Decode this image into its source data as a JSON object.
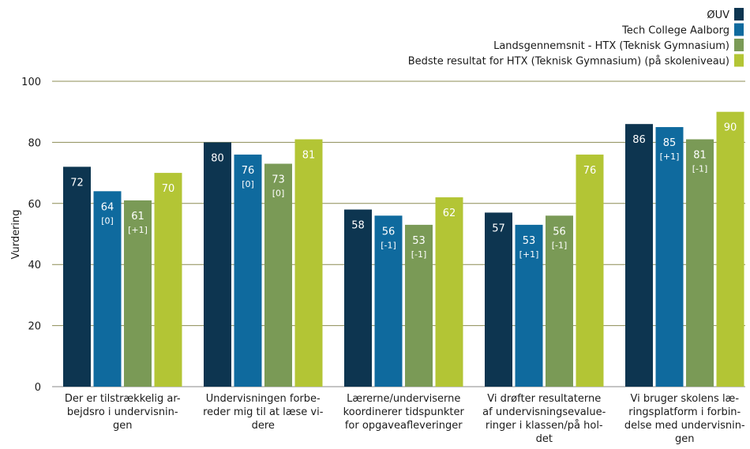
{
  "chart_data": {
    "type": "bar",
    "ylabel": "Vurdering",
    "ylim": [
      0,
      100
    ],
    "yticks": [
      0,
      20,
      40,
      60,
      80,
      100
    ],
    "grid": true,
    "legend_position": "top-right",
    "categories": [
      [
        "Der er tilstrækkelig ar-",
        "bejdsro i undervisnin-",
        "gen"
      ],
      [
        "Undervisningen forbe-",
        "reder mig til at læse vi-",
        "dere"
      ],
      [
        "Lærerne/underviserne",
        "koordinerer tidspunkter",
        "for opgaveafleveringer"
      ],
      [
        "Vi drøfter resultaterne",
        "af undervisningsevalue-",
        "ringer i klassen/på hol-",
        "det"
      ],
      [
        "Vi bruger skolens læ-",
        "ringsplatform  i forbin-",
        "delse med undervisnin-",
        "gen"
      ]
    ],
    "series": [
      {
        "name": "ØUV",
        "color": "#0d3550",
        "values": [
          72,
          80,
          58,
          57,
          86
        ],
        "diffs": [
          "",
          "",
          "",
          "",
          ""
        ]
      },
      {
        "name": "Tech College Aalborg",
        "color": "#0f6a9e",
        "values": [
          64,
          76,
          56,
          53,
          85
        ],
        "diffs": [
          "[0]",
          "[0]",
          "[-1]",
          "[+1]",
          "[+1]"
        ]
      },
      {
        "name": "Landsgennemsnit - HTX (Teknisk Gymnasium)",
        "color": "#7a9a56",
        "values": [
          61,
          73,
          53,
          56,
          81
        ],
        "diffs": [
          "[+1]",
          "[0]",
          "[-1]",
          "[-1]",
          "[-1]"
        ]
      },
      {
        "name": "Bedste resultat for HTX (Teknisk Gymnasium) (på skoleniveau)",
        "color": "#b3c535",
        "values": [
          70,
          81,
          62,
          76,
          90
        ],
        "diffs": [
          "",
          "",
          "",
          "",
          ""
        ]
      }
    ]
  }
}
